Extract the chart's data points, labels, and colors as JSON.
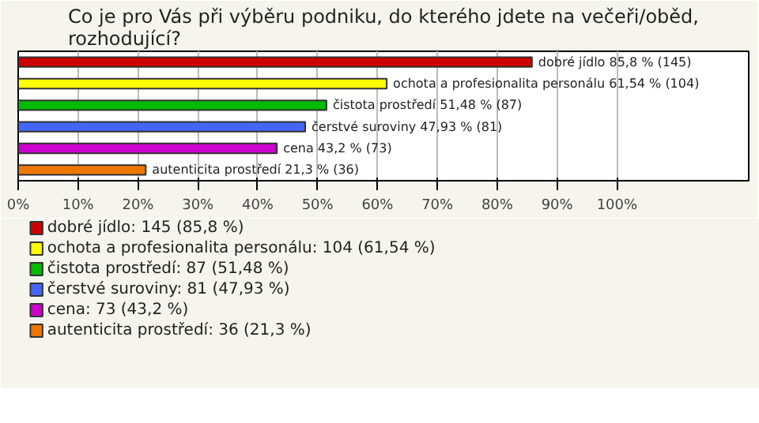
{
  "chart_data": {
    "type": "bar",
    "orientation": "horizontal",
    "title": "Co je pro Vás při výběru podniku, do kterého jdete na večeři/oběd, rozhodující?",
    "categories": [
      null,
      null,
      null,
      null,
      null,
      null
    ],
    "series": [
      {
        "name": "dobré jídlo: 145 (85,8 %)",
        "color": "#cc0000",
        "values": [
          85.8,
          null,
          null,
          null,
          null,
          null
        ],
        "value_labels": [
          "dobré jídlo 85,8 % (145)",
          null,
          null,
          null,
          null,
          null
        ]
      },
      {
        "name": "ochota a profesionalita personálu: 104 (61,54 %)",
        "color": "#ffff00",
        "values": [
          null,
          61.54,
          null,
          null,
          null,
          null
        ],
        "value_labels": [
          null,
          "ochota a profesionalita personálu 61,54 % (104)",
          null,
          null,
          null,
          null
        ]
      },
      {
        "name": "čistota prostředí: 87 (51,48 %)",
        "color": "#00bb00",
        "values": [
          null,
          null,
          51.48,
          null,
          null,
          null
        ],
        "value_labels": [
          null,
          null,
          "čistota prostředí 51,48 % (87)",
          null,
          null,
          null
        ]
      },
      {
        "name": "čerstvé suroviny: 81 (47,93 %)",
        "color": "#4466ff",
        "values": [
          null,
          null,
          null,
          47.93,
          null,
          null
        ],
        "value_labels": [
          null,
          null,
          null,
          "čerstvé suroviny 47,93 % (81)",
          null,
          null
        ]
      },
      {
        "name": "cena: 73 (43,2 %)",
        "color": "#cc00cc",
        "values": [
          null,
          null,
          null,
          null,
          43.2,
          null
        ],
        "value_labels": [
          null,
          null,
          null,
          null,
          "cena 43,2 % (73)",
          null
        ]
      },
      {
        "name": "autenticita prostředí: 36 (21,3 %)",
        "color": "#ee7700",
        "values": [
          null,
          null,
          null,
          null,
          null,
          21.3
        ],
        "value_labels": [
          null,
          null,
          null,
          null,
          null,
          "autenticita prostředí 21,3 % (36)"
        ]
      }
    ],
    "xlim": [
      0,
      122
    ],
    "xticks": [
      {
        "value": 0,
        "label": "0%"
      },
      {
        "value": 10,
        "label": "10%"
      },
      {
        "value": 20,
        "label": "20%"
      },
      {
        "value": 30,
        "label": "30%"
      },
      {
        "value": 40,
        "label": "40%"
      },
      {
        "value": 50,
        "label": "50%"
      },
      {
        "value": 60,
        "label": "60%"
      },
      {
        "value": 70,
        "label": "70%"
      },
      {
        "value": 80,
        "label": "80%"
      },
      {
        "value": 90,
        "label": "90%"
      },
      {
        "value": 100,
        "label": "100%"
      }
    ],
    "grid": "x",
    "legend": "bottom",
    "tick_labels": "x"
  }
}
